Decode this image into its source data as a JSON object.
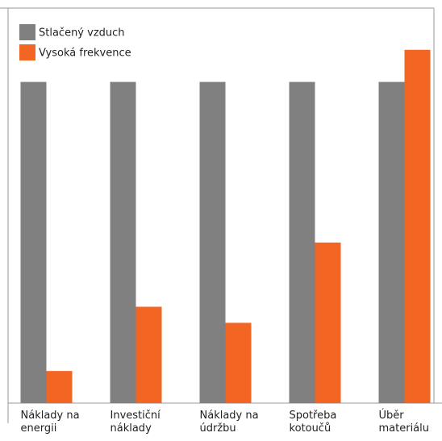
{
  "chart_data": {
    "type": "bar",
    "categories": [
      "Náklady na energii",
      "Investiční náklady",
      "Náklady na údržbu",
      "Spotřeba kotoučů",
      "Úběr materiálu"
    ],
    "series": [
      {
        "name": "Stlačený vzduch",
        "color": "#808080",
        "values": [
          100,
          100,
          100,
          100,
          100
        ]
      },
      {
        "name": "Vysoká frekvence",
        "color": "#f26522",
        "values": [
          10,
          30,
          25,
          50,
          110
        ]
      }
    ],
    "ylim": [
      0,
      123
    ]
  }
}
